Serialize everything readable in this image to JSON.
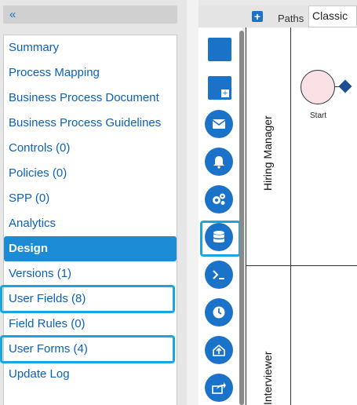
{
  "sidebar": {
    "collapse_glyph": "«",
    "items": [
      {
        "label": "Summary"
      },
      {
        "label": "Process Mapping"
      },
      {
        "label": "Business Process Document"
      },
      {
        "label": "Business Process Guidelines"
      },
      {
        "label": "Controls (0)"
      },
      {
        "label": "Policies (0)"
      },
      {
        "label": "SPP (0)"
      },
      {
        "label": "Analytics"
      },
      {
        "label": "Design",
        "active": true
      },
      {
        "label": "Versions (1)"
      },
      {
        "label": "User Fields (8)",
        "highlighted": true
      },
      {
        "label": "Field Rules (0)"
      },
      {
        "label": "User Forms (4)",
        "highlighted": true
      },
      {
        "label": "Update Log"
      }
    ]
  },
  "toolbar": {
    "add_glyph": "+",
    "paths_label": "Paths",
    "view_select_value": "Classic"
  },
  "tool_icons": [
    "square-shape-icon",
    "subprocess-icon",
    "mail-icon",
    "bell-icon",
    "gears-icon",
    "database-icon",
    "terminal-icon",
    "clock-icon",
    "cloud-upload-icon",
    "share-icon"
  ],
  "diagram": {
    "lanes": [
      "Hiring Manager",
      "Interviewer"
    ],
    "start_label": "Start"
  },
  "colors": {
    "accent": "#1a73c9",
    "active": "#1a8bd4",
    "highlight": "#1aa5de",
    "start_fill": "#f9e1e6"
  }
}
